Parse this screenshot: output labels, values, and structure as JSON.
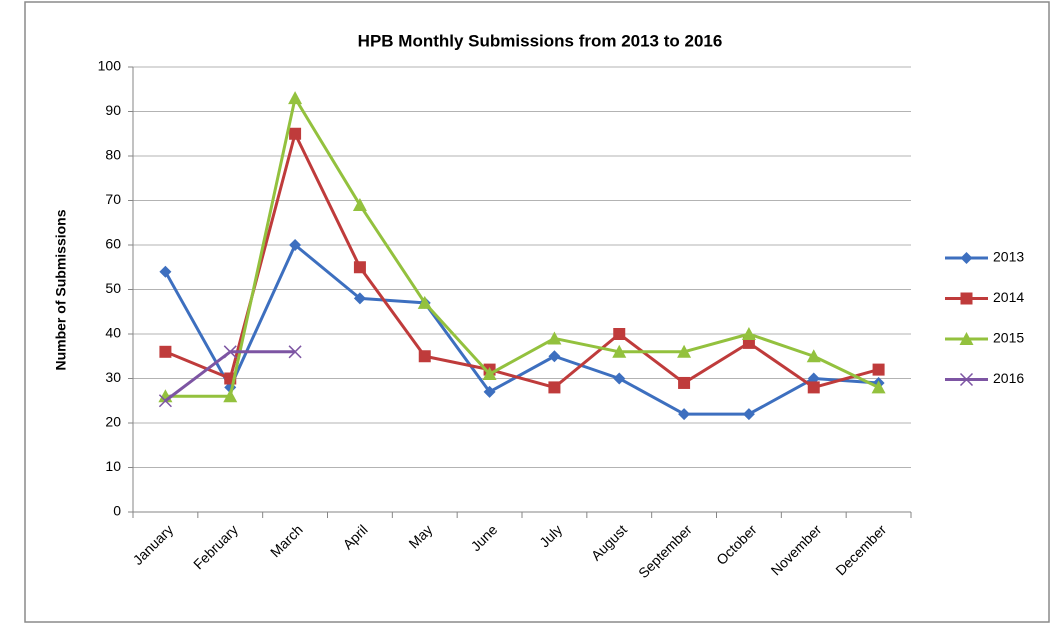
{
  "chart_data": {
    "type": "line",
    "title": "HPB Monthly Submissions from 2013 to 2016",
    "ylabel": "Number of Submissions",
    "categories": [
      "January",
      "February",
      "March",
      "April",
      "May",
      "June",
      "July",
      "August",
      "September",
      "October",
      "November",
      "December"
    ],
    "series": [
      {
        "name": "2013",
        "color": "#3d6fbf",
        "marker": "diamond",
        "values": [
          54,
          28,
          60,
          48,
          47,
          27,
          35,
          30,
          22,
          22,
          30,
          29
        ]
      },
      {
        "name": "2014",
        "color": "#bf3b3b",
        "marker": "square",
        "values": [
          36,
          30,
          85,
          55,
          35,
          32,
          28,
          40,
          29,
          38,
          28,
          32
        ]
      },
      {
        "name": "2015",
        "color": "#93c13e",
        "marker": "triangle",
        "values": [
          26,
          26,
          93,
          69,
          47,
          31,
          39,
          36,
          36,
          40,
          35,
          28
        ]
      },
      {
        "name": "2016",
        "color": "#7d55a3",
        "marker": "x",
        "values": [
          25,
          36,
          36,
          null,
          null,
          null,
          null,
          null,
          null,
          null,
          null,
          null
        ]
      }
    ],
    "ylim": [
      0,
      100
    ],
    "yticks": [
      0,
      10,
      20,
      30,
      40,
      50,
      60,
      70,
      80,
      90,
      100
    ],
    "grid": true,
    "legend": "right"
  }
}
